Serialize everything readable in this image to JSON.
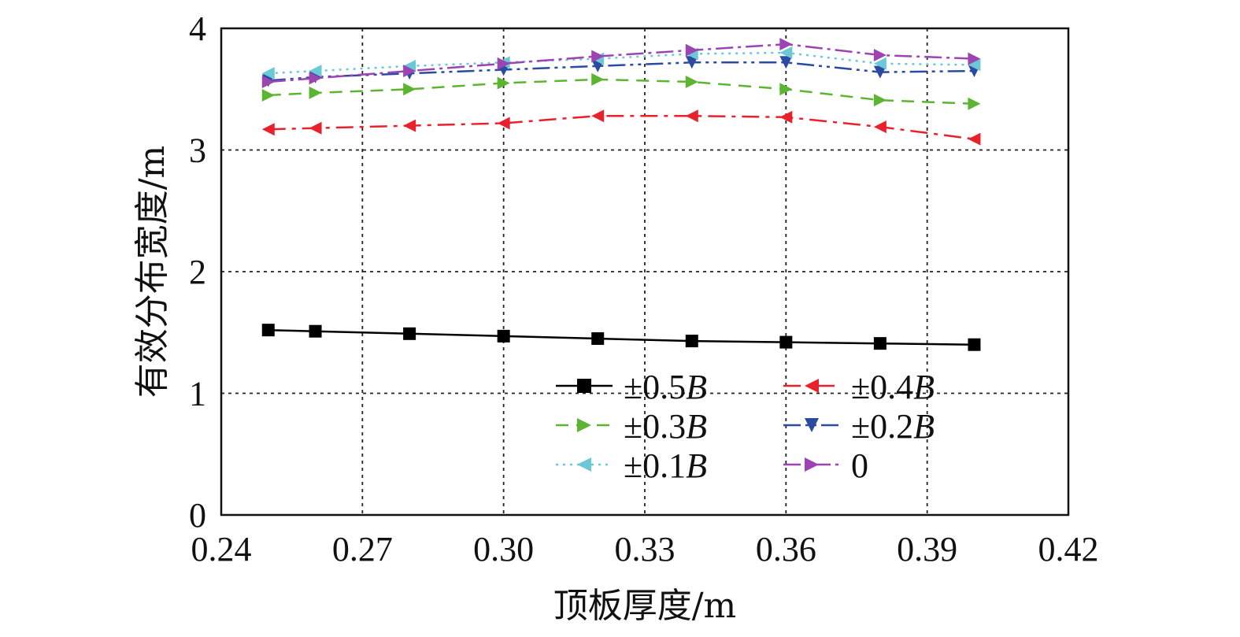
{
  "chart_data": {
    "type": "line",
    "xlabel": "顶板厚度/m",
    "ylabel": "有效分布宽度/m",
    "xlim": [
      0.24,
      0.42
    ],
    "ylim": [
      0,
      4
    ],
    "x_ticks": [
      "0.24",
      "0.27",
      "0.30",
      "0.33",
      "0.36",
      "0.39",
      "0.42"
    ],
    "y_ticks": [
      "0",
      "1",
      "2",
      "3",
      "4"
    ],
    "grid": true,
    "legend_position": "lower-right",
    "x": [
      0.25,
      0.26,
      0.28,
      0.3,
      0.32,
      0.34,
      0.36,
      0.38,
      0.4
    ],
    "series": [
      {
        "name": "±0.5B",
        "name_prefix": "±0.5",
        "name_italic": "B",
        "color": "#000000",
        "marker": "square",
        "dash": "",
        "values": [
          1.52,
          1.51,
          1.49,
          1.47,
          1.45,
          1.43,
          1.42,
          1.41,
          1.4
        ]
      },
      {
        "name": "±0.4B",
        "name_prefix": "±0.4",
        "name_italic": "B",
        "color": "#e8212a",
        "marker": "triangle-left",
        "dash": "22 8 5 8",
        "values": [
          3.17,
          3.18,
          3.2,
          3.22,
          3.28,
          3.28,
          3.27,
          3.19,
          3.09
        ]
      },
      {
        "name": "±0.3B",
        "name_prefix": "±0.3",
        "name_italic": "B",
        "color": "#5cb531",
        "marker": "triangle-right",
        "dash": "16 10",
        "values": [
          3.45,
          3.47,
          3.5,
          3.55,
          3.58,
          3.56,
          3.5,
          3.41,
          3.38
        ]
      },
      {
        "name": "±0.2B",
        "name_prefix": "±0.2",
        "name_italic": "B",
        "color": "#2b4ba0",
        "marker": "triangle-down",
        "dash": "22 6 4 6 4 6",
        "values": [
          3.57,
          3.6,
          3.63,
          3.66,
          3.69,
          3.72,
          3.72,
          3.64,
          3.65
        ]
      },
      {
        "name": "±0.1B",
        "name_prefix": "±0.1",
        "name_italic": "B",
        "color": "#6cc8d6",
        "marker": "triangle-left",
        "dash": "3 6",
        "values": [
          3.63,
          3.65,
          3.69,
          3.72,
          3.75,
          3.79,
          3.8,
          3.71,
          3.7
        ]
      },
      {
        "name": "0",
        "name_prefix": "0",
        "name_italic": "",
        "color": "#9b44b2",
        "marker": "triangle-right",
        "dash": "22 6 4 6",
        "values": [
          3.56,
          3.59,
          3.65,
          3.71,
          3.77,
          3.82,
          3.87,
          3.78,
          3.75
        ]
      }
    ]
  }
}
